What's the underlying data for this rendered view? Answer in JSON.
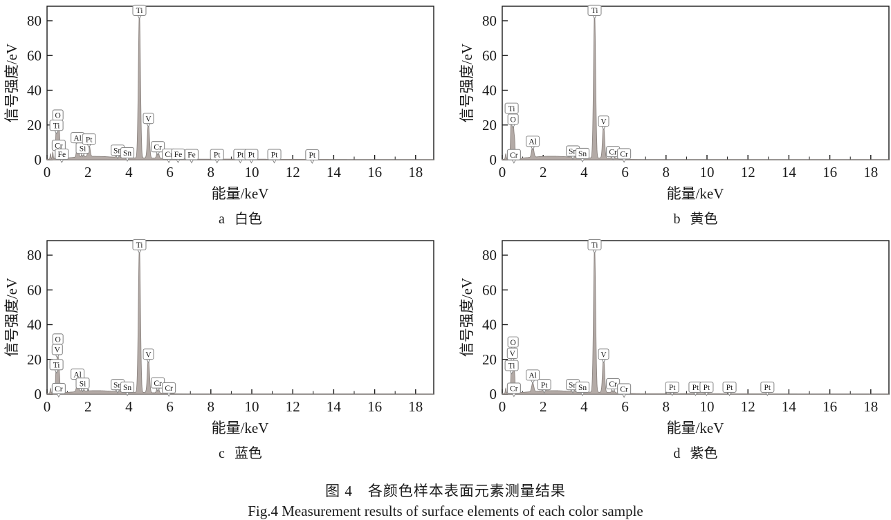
{
  "figure": {
    "caption_zh": "图 4　各颜色样本表面元素测量结果",
    "caption_en": "Fig.4 Measurement results of surface elements of each color sample"
  },
  "style": {
    "curve_fill": "#b3aaa6",
    "curve_stroke": "#8c8480",
    "axis_color": "#1a1a1a",
    "label_box_border": "#8a8a8a",
    "label_box_fill": "#ffffff"
  },
  "chart_data": [
    {
      "type": "area",
      "title": "a 白色",
      "caption_letter": "a",
      "caption_color": "白色",
      "xlabel": "能量/keV",
      "ylabel": "信号强度/eV",
      "xlim": [
        0,
        18.9
      ],
      "ylim": [
        0,
        88
      ],
      "x_ticks": [
        0,
        2,
        4,
        6,
        8,
        10,
        12,
        14,
        16,
        18
      ],
      "y_ticks": [
        0,
        20,
        40,
        60,
        80
      ],
      "series": [
        {
          "e": 0.17,
          "h": 3,
          "s": 0.02
        },
        {
          "e": 0.28,
          "h": 4,
          "s": 0.02
        },
        {
          "e": 0.45,
          "h": 17,
          "s": 0.03
        },
        {
          "e": 0.525,
          "h": 21,
          "s": 0.035
        },
        {
          "e": 0.6,
          "h": 14,
          "s": 0.03
        },
        {
          "e": 0.71,
          "h": 5,
          "s": 0.03
        },
        {
          "e": 1.49,
          "h": 8,
          "s": 0.045
        },
        {
          "e": 1.74,
          "h": 3.5,
          "s": 0.04
        },
        {
          "e": 2.05,
          "h": 7,
          "s": 0.05
        },
        {
          "e": 2.3,
          "h": 1.9,
          "s": 1.2
        },
        {
          "e": 5.0,
          "h": 0.7,
          "s": 0.8
        },
        {
          "e": 9.0,
          "h": 0.35,
          "s": 3
        },
        {
          "e": 3.45,
          "h": 3.2,
          "s": 0.05
        },
        {
          "e": 3.9,
          "h": 1.4,
          "s": 0.05
        },
        {
          "e": 4.51,
          "h": 84,
          "s": 0.05
        },
        {
          "e": 4.95,
          "h": 20,
          "s": 0.05
        },
        {
          "e": 5.41,
          "h": 4.5,
          "s": 0.05
        },
        {
          "e": 5.95,
          "h": 1.2,
          "s": 0.05
        },
        {
          "e": 6.4,
          "h": 1.0,
          "s": 0.05
        },
        {
          "e": 7.06,
          "h": 0.8,
          "s": 0.05
        },
        {
          "e": 8.3,
          "h": 0.5,
          "s": 0.06
        },
        {
          "e": 9.44,
          "h": 0.45,
          "s": 0.06
        },
        {
          "e": 9.98,
          "h": 0.45,
          "s": 0.06
        },
        {
          "e": 11.1,
          "h": 0.4,
          "s": 0.06
        },
        {
          "e": 12.95,
          "h": 0.3,
          "s": 0.06
        }
      ],
      "labels": [
        {
          "el": "O",
          "e": 0.53,
          "y": 25.7
        },
        {
          "el": "Ti",
          "e": 0.46,
          "y": 19.8
        },
        {
          "el": "Cr",
          "e": 0.57,
          "y": 8.3
        },
        {
          "el": "Fe",
          "e": 0.72,
          "y": 3.2
        },
        {
          "el": "Al",
          "e": 1.49,
          "y": 12.7
        },
        {
          "el": "Si",
          "e": 1.74,
          "y": 6.7
        },
        {
          "el": "Pt",
          "e": 2.05,
          "y": 11.9
        },
        {
          "el": "Sn",
          "e": 3.45,
          "y": 5.5
        },
        {
          "el": "Sn",
          "e": 3.92,
          "y": 4.0
        },
        {
          "el": "Ti",
          "e": 4.51,
          "y": 86
        },
        {
          "el": "V",
          "e": 4.95,
          "y": 23.8
        },
        {
          "el": "Cr",
          "e": 5.41,
          "y": 7.5
        },
        {
          "el": "Cr",
          "e": 5.95,
          "y": 3.2
        },
        {
          "el": "Fe",
          "e": 6.4,
          "y": 3.2
        },
        {
          "el": "Fe",
          "e": 7.06,
          "y": 3.0
        },
        {
          "el": "Pt",
          "e": 8.3,
          "y": 3.0
        },
        {
          "el": "Pt",
          "e": 9.44,
          "y": 3.0
        },
        {
          "el": "Pt",
          "e": 9.98,
          "y": 3.0
        },
        {
          "el": "Pt",
          "e": 11.1,
          "y": 3.0
        },
        {
          "el": "Pt",
          "e": 12.95,
          "y": 2.8
        }
      ]
    },
    {
      "type": "area",
      "title": "b 黄色",
      "caption_letter": "b",
      "caption_color": "黄色",
      "xlabel": "能量/keV",
      "ylabel": "信号强度/eV",
      "xlim": [
        0,
        18.9
      ],
      "ylim": [
        0,
        88
      ],
      "x_ticks": [
        0,
        2,
        4,
        6,
        8,
        10,
        12,
        14,
        16,
        18
      ],
      "y_ticks": [
        0,
        20,
        40,
        60,
        80
      ],
      "series": [
        {
          "e": 0.17,
          "h": 3,
          "s": 0.02
        },
        {
          "e": 0.28,
          "h": 4,
          "s": 0.02
        },
        {
          "e": 0.45,
          "h": 27,
          "s": 0.035
        },
        {
          "e": 0.525,
          "h": 22,
          "s": 0.035
        },
        {
          "e": 0.6,
          "h": 10,
          "s": 0.03
        },
        {
          "e": 1.49,
          "h": 6.5,
          "s": 0.05
        },
        {
          "e": 2.4,
          "h": 2.0,
          "s": 1.2
        },
        {
          "e": 5.0,
          "h": 0.7,
          "s": 0.8
        },
        {
          "e": 3.45,
          "h": 3.0,
          "s": 0.05
        },
        {
          "e": 3.9,
          "h": 1.4,
          "s": 0.05
        },
        {
          "e": 4.51,
          "h": 84,
          "s": 0.05
        },
        {
          "e": 4.95,
          "h": 19,
          "s": 0.05
        },
        {
          "e": 5.41,
          "h": 3.5,
          "s": 0.05
        },
        {
          "e": 5.95,
          "h": 1.0,
          "s": 0.05
        }
      ],
      "labels": [
        {
          "el": "Ti",
          "e": 0.46,
          "y": 29.6
        },
        {
          "el": "O",
          "e": 0.53,
          "y": 23.3
        },
        {
          "el": "Cr",
          "e": 0.57,
          "y": 2.9
        },
        {
          "el": "Al",
          "e": 1.49,
          "y": 10.6
        },
        {
          "el": "Sn",
          "e": 3.45,
          "y": 5.0
        },
        {
          "el": "Sn",
          "e": 3.92,
          "y": 3.6
        },
        {
          "el": "Ti",
          "e": 4.51,
          "y": 86
        },
        {
          "el": "V",
          "e": 4.95,
          "y": 22.2
        },
        {
          "el": "Cr",
          "e": 5.41,
          "y": 4.7
        },
        {
          "el": "Cr",
          "e": 5.95,
          "y": 3.4
        }
      ]
    },
    {
      "type": "area",
      "title": "c 蓝色",
      "caption_letter": "c",
      "caption_color": "蓝色",
      "xlabel": "能量/keV",
      "ylabel": "信号强度/eV",
      "xlim": [
        0,
        18.9
      ],
      "ylim": [
        0,
        88
      ],
      "x_ticks": [
        0,
        2,
        4,
        6,
        8,
        10,
        12,
        14,
        16,
        18
      ],
      "y_ticks": [
        0,
        20,
        40,
        60,
        80
      ],
      "series": [
        {
          "e": 0.17,
          "h": 3,
          "s": 0.02
        },
        {
          "e": 0.28,
          "h": 4,
          "s": 0.02
        },
        {
          "e": 0.45,
          "h": 15,
          "s": 0.03
        },
        {
          "e": 0.525,
          "h": 23,
          "s": 0.035
        },
        {
          "e": 0.6,
          "h": 10,
          "s": 0.03
        },
        {
          "e": 1.49,
          "h": 5,
          "s": 0.05
        },
        {
          "e": 1.74,
          "h": 2.5,
          "s": 0.045
        },
        {
          "e": 2.4,
          "h": 2.0,
          "s": 1.2
        },
        {
          "e": 5.0,
          "h": 0.7,
          "s": 0.8
        },
        {
          "e": 3.45,
          "h": 3.0,
          "s": 0.05
        },
        {
          "e": 3.9,
          "h": 1.4,
          "s": 0.05
        },
        {
          "e": 4.51,
          "h": 84,
          "s": 0.05
        },
        {
          "e": 4.95,
          "h": 20,
          "s": 0.05
        },
        {
          "e": 5.41,
          "h": 4.0,
          "s": 0.05
        },
        {
          "e": 5.95,
          "h": 1.0,
          "s": 0.05
        }
      ],
      "labels": [
        {
          "el": "O",
          "e": 0.53,
          "y": 31.7
        },
        {
          "el": "V",
          "e": 0.5,
          "y": 25.7
        },
        {
          "el": "Ti",
          "e": 0.46,
          "y": 17.0
        },
        {
          "el": "Cr",
          "e": 0.57,
          "y": 3.2
        },
        {
          "el": "Al",
          "e": 1.49,
          "y": 11.5
        },
        {
          "el": "Si",
          "e": 1.74,
          "y": 6.3
        },
        {
          "el": "Sn",
          "e": 3.45,
          "y": 5.5
        },
        {
          "el": "Sn",
          "e": 3.92,
          "y": 4.0
        },
        {
          "el": "Ti",
          "e": 4.51,
          "y": 86
        },
        {
          "el": "V",
          "e": 4.95,
          "y": 23.0
        },
        {
          "el": "Cr",
          "e": 5.41,
          "y": 6.5
        },
        {
          "el": "Cr",
          "e": 5.95,
          "y": 3.6
        }
      ]
    },
    {
      "type": "area",
      "title": "d 紫色",
      "caption_letter": "d",
      "caption_color": "紫色",
      "xlabel": "能量/keV",
      "ylabel": "信号强度/eV",
      "xlim": [
        0,
        18.9
      ],
      "ylim": [
        0,
        88
      ],
      "x_ticks": [
        0,
        2,
        4,
        6,
        8,
        10,
        12,
        14,
        16,
        18
      ],
      "y_ticks": [
        0,
        20,
        40,
        60,
        80
      ],
      "series": [
        {
          "e": 0.17,
          "h": 3,
          "s": 0.02
        },
        {
          "e": 0.28,
          "h": 4,
          "s": 0.02
        },
        {
          "e": 0.45,
          "h": 14,
          "s": 0.03
        },
        {
          "e": 0.525,
          "h": 22,
          "s": 0.035
        },
        {
          "e": 0.6,
          "h": 10,
          "s": 0.03
        },
        {
          "e": 1.49,
          "h": 5,
          "s": 0.05
        },
        {
          "e": 2.05,
          "h": 1.5,
          "s": 0.05
        },
        {
          "e": 2.4,
          "h": 2.0,
          "s": 1.2
        },
        {
          "e": 5.0,
          "h": 0.7,
          "s": 0.8
        },
        {
          "e": 9.0,
          "h": 0.3,
          "s": 3
        },
        {
          "e": 3.45,
          "h": 3.0,
          "s": 0.05
        },
        {
          "e": 3.9,
          "h": 1.4,
          "s": 0.05
        },
        {
          "e": 4.51,
          "h": 84,
          "s": 0.05
        },
        {
          "e": 4.95,
          "h": 20,
          "s": 0.05
        },
        {
          "e": 5.41,
          "h": 3.5,
          "s": 0.05
        },
        {
          "e": 5.95,
          "h": 0.8,
          "s": 0.05
        },
        {
          "e": 8.3,
          "h": 0.4,
          "s": 0.06
        },
        {
          "e": 9.44,
          "h": 0.4,
          "s": 0.06
        },
        {
          "e": 9.98,
          "h": 0.4,
          "s": 0.06
        },
        {
          "e": 11.1,
          "h": 0.3,
          "s": 0.06
        },
        {
          "e": 12.95,
          "h": 0.3,
          "s": 0.06
        }
      ],
      "labels": [
        {
          "el": "O",
          "e": 0.53,
          "y": 30.0
        },
        {
          "el": "V",
          "e": 0.5,
          "y": 23.5
        },
        {
          "el": "Ti",
          "e": 0.46,
          "y": 16.5
        },
        {
          "el": "Cr",
          "e": 0.57,
          "y": 3.4
        },
        {
          "el": "Al",
          "e": 1.49,
          "y": 11.0
        },
        {
          "el": "Pt",
          "e": 2.05,
          "y": 5.5
        },
        {
          "el": "Sn",
          "e": 3.45,
          "y": 5.5
        },
        {
          "el": "Sn",
          "e": 3.92,
          "y": 4.0
        },
        {
          "el": "Ti",
          "e": 4.51,
          "y": 86
        },
        {
          "el": "V",
          "e": 4.95,
          "y": 23.0
        },
        {
          "el": "Cr",
          "e": 5.41,
          "y": 6.0
        },
        {
          "el": "Cr",
          "e": 5.95,
          "y": 3.0
        },
        {
          "el": "Pt",
          "e": 8.3,
          "y": 4.0
        },
        {
          "el": "Pt",
          "e": 9.44,
          "y": 4.0
        },
        {
          "el": "Pt",
          "e": 9.98,
          "y": 4.0
        },
        {
          "el": "Pt",
          "e": 11.1,
          "y": 4.0
        },
        {
          "el": "Pt",
          "e": 12.95,
          "y": 4.0
        }
      ]
    }
  ]
}
